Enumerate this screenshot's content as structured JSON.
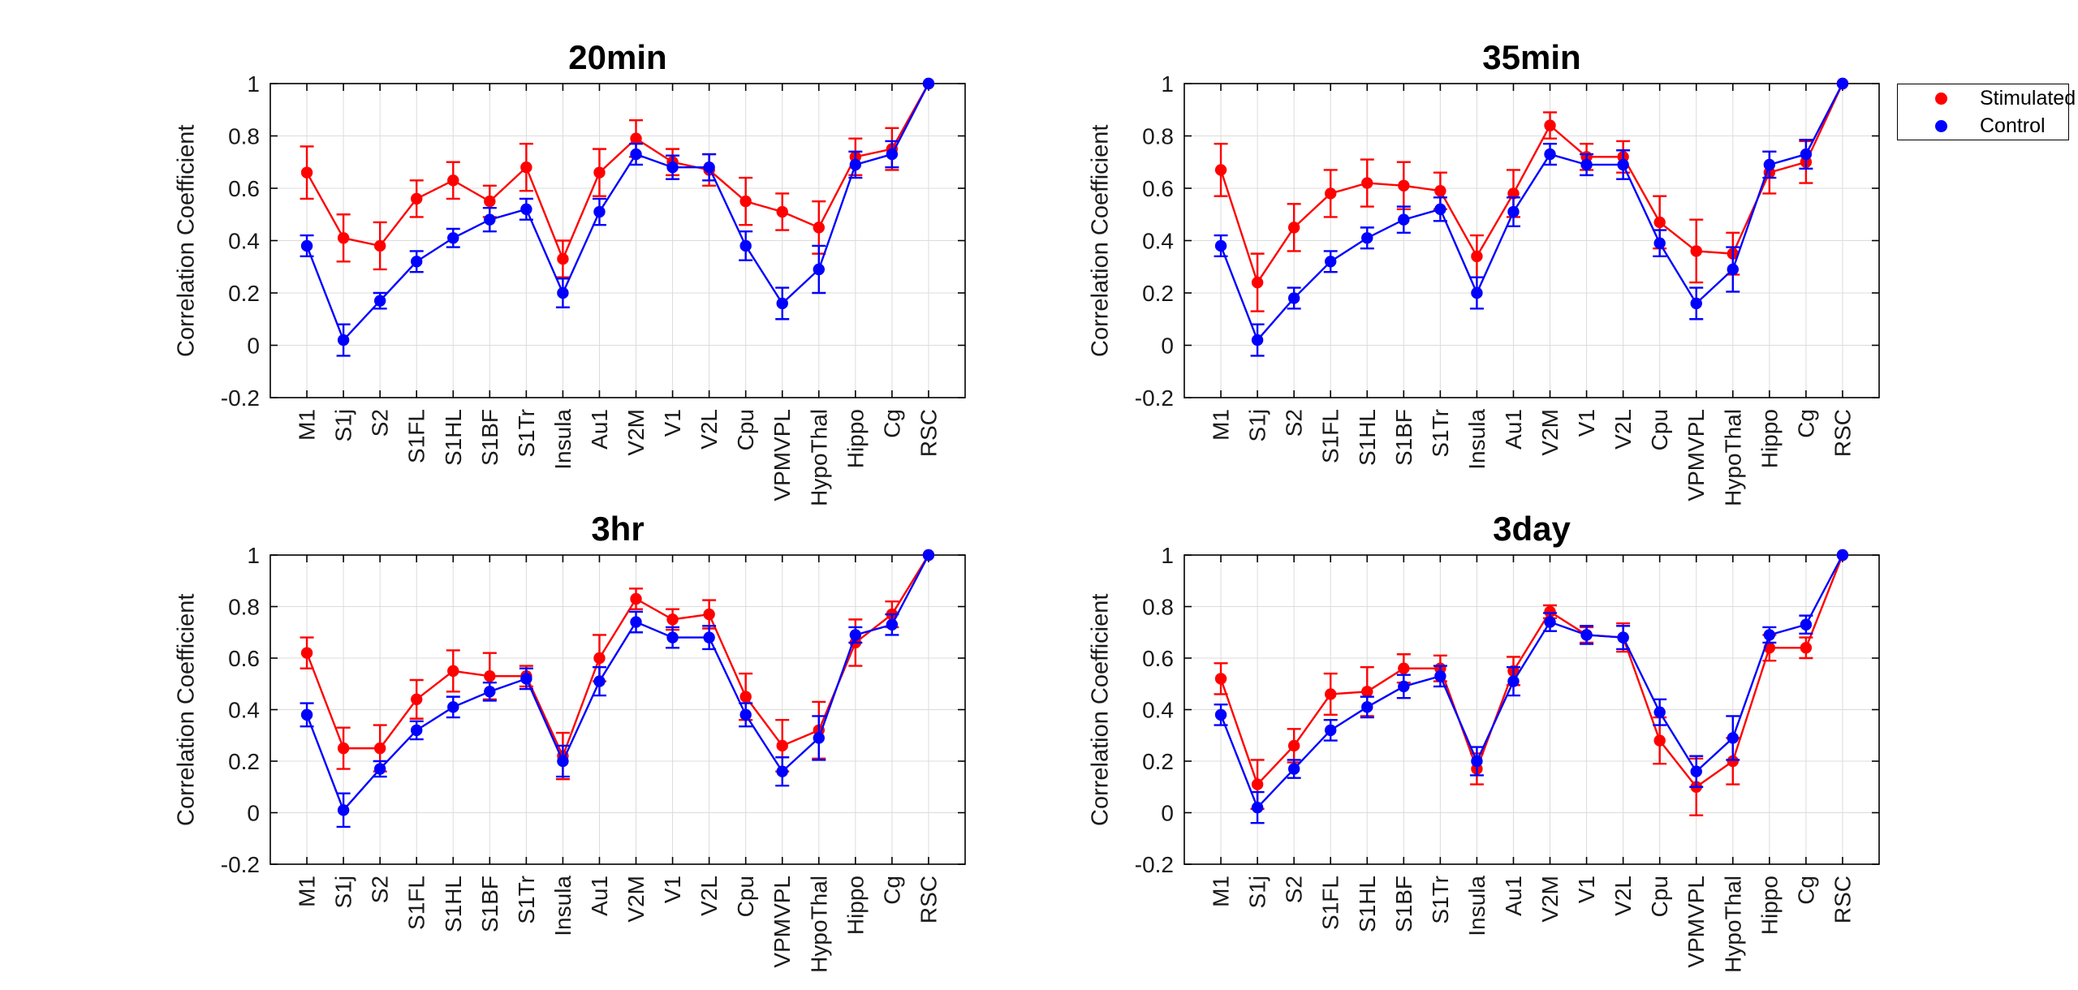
{
  "figure": {
    "background": "#ffffff"
  },
  "legend": {
    "border_color": "#000000",
    "items": [
      {
        "label": "Stimulated",
        "color": "#ff0000"
      },
      {
        "label": "Control",
        "color": "#0000ff"
      }
    ]
  },
  "chart_data": [
    {
      "type": "line",
      "title": "20min",
      "ylabel": "Correlation Coefficient",
      "ylim": [
        -0.2,
        1
      ],
      "ytick_labels": [
        "-0.2",
        "0",
        "0.2",
        "0.4",
        "0.6",
        "0.8",
        "1"
      ],
      "grid": true,
      "legend_position": "outside-top-right",
      "categories": [
        "M1",
        "S1j",
        "S2",
        "S1FL",
        "S1HL",
        "S1BF",
        "S1Tr",
        "Insula",
        "Au1",
        "V2M",
        "V1",
        "V2L",
        "Cpu",
        "VPMVPL",
        "HypoThal",
        "Hippo",
        "Cg",
        "RSC"
      ],
      "series": [
        {
          "name": "Stimulated",
          "color": "#ff0000",
          "values": [
            0.66,
            0.41,
            0.38,
            0.56,
            0.63,
            0.55,
            0.68,
            0.33,
            0.66,
            0.79,
            0.7,
            0.67,
            0.55,
            0.51,
            0.45,
            0.72,
            0.75,
            1.0
          ],
          "errors": [
            0.1,
            0.09,
            0.09,
            0.07,
            0.07,
            0.06,
            0.09,
            0.07,
            0.09,
            0.07,
            0.05,
            0.06,
            0.09,
            0.07,
            0.1,
            0.07,
            0.08,
            0
          ]
        },
        {
          "name": "Control",
          "color": "#0000ff",
          "values": [
            0.38,
            0.02,
            0.17,
            0.32,
            0.41,
            0.48,
            0.52,
            0.2,
            0.51,
            0.73,
            0.68,
            0.68,
            0.38,
            0.16,
            0.29,
            0.69,
            0.73,
            1.0
          ],
          "errors": [
            0.04,
            0.06,
            0.03,
            0.04,
            0.035,
            0.045,
            0.04,
            0.055,
            0.05,
            0.04,
            0.045,
            0.05,
            0.055,
            0.06,
            0.09,
            0.05,
            0.05,
            0
          ]
        }
      ]
    },
    {
      "type": "line",
      "title": "35min",
      "ylabel": "Correlation Coefficient",
      "ylim": [
        -0.2,
        1
      ],
      "ytick_labels": [
        "-0.2",
        "0",
        "0.2",
        "0.4",
        "0.6",
        "0.8",
        "1"
      ],
      "grid": true,
      "categories": [
        "M1",
        "S1j",
        "S2",
        "S1FL",
        "S1HL",
        "S1BF",
        "S1Tr",
        "Insula",
        "Au1",
        "V2M",
        "V1",
        "V2L",
        "Cpu",
        "VPMVPL",
        "HypoThal",
        "Hippo",
        "Cg",
        "RSC"
      ],
      "series": [
        {
          "name": "Stimulated",
          "color": "#ff0000",
          "values": [
            0.67,
            0.24,
            0.45,
            0.58,
            0.62,
            0.61,
            0.59,
            0.34,
            0.58,
            0.84,
            0.72,
            0.72,
            0.47,
            0.36,
            0.35,
            0.66,
            0.7,
            1.0
          ],
          "errors": [
            0.1,
            0.11,
            0.09,
            0.09,
            0.09,
            0.09,
            0.07,
            0.08,
            0.09,
            0.05,
            0.05,
            0.06,
            0.1,
            0.12,
            0.08,
            0.08,
            0.08,
            0
          ]
        },
        {
          "name": "Control",
          "color": "#0000ff",
          "values": [
            0.38,
            0.02,
            0.18,
            0.32,
            0.41,
            0.48,
            0.52,
            0.2,
            0.51,
            0.73,
            0.69,
            0.69,
            0.39,
            0.16,
            0.29,
            0.69,
            0.73,
            1.0
          ],
          "errors": [
            0.04,
            0.06,
            0.04,
            0.04,
            0.04,
            0.05,
            0.045,
            0.06,
            0.055,
            0.04,
            0.04,
            0.055,
            0.05,
            0.06,
            0.085,
            0.05,
            0.055,
            0
          ]
        }
      ]
    },
    {
      "type": "line",
      "title": "3hr",
      "ylabel": "Correlation Coefficient",
      "ylim": [
        -0.2,
        1
      ],
      "ytick_labels": [
        "-0.2",
        "0",
        "0.2",
        "0.4",
        "0.6",
        "0.8",
        "1"
      ],
      "grid": true,
      "categories": [
        "M1",
        "S1j",
        "S2",
        "S1FL",
        "S1HL",
        "S1BF",
        "S1Tr",
        "Insula",
        "Au1",
        "V2M",
        "V1",
        "V2L",
        "Cpu",
        "VPMVPL",
        "HypoThal",
        "Hippo",
        "Cg",
        "RSC"
      ],
      "series": [
        {
          "name": "Stimulated",
          "color": "#ff0000",
          "values": [
            0.62,
            0.25,
            0.25,
            0.44,
            0.55,
            0.53,
            0.53,
            0.22,
            0.6,
            0.83,
            0.75,
            0.77,
            0.45,
            0.26,
            0.32,
            0.66,
            0.77,
            1.0
          ],
          "errors": [
            0.06,
            0.08,
            0.09,
            0.075,
            0.08,
            0.09,
            0.04,
            0.09,
            0.09,
            0.04,
            0.04,
            0.055,
            0.09,
            0.1,
            0.11,
            0.09,
            0.05,
            0
          ]
        },
        {
          "name": "Control",
          "color": "#0000ff",
          "values": [
            0.38,
            0.01,
            0.17,
            0.32,
            0.41,
            0.47,
            0.52,
            0.2,
            0.51,
            0.74,
            0.68,
            0.68,
            0.38,
            0.16,
            0.29,
            0.69,
            0.73,
            1.0
          ],
          "errors": [
            0.045,
            0.065,
            0.03,
            0.035,
            0.04,
            0.035,
            0.04,
            0.06,
            0.055,
            0.04,
            0.04,
            0.045,
            0.045,
            0.055,
            0.085,
            0.03,
            0.04,
            0
          ]
        }
      ]
    },
    {
      "type": "line",
      "title": "3day",
      "ylabel": "Correlation Coefficient",
      "ylim": [
        -0.2,
        1
      ],
      "ytick_labels": [
        "-0.2",
        "0",
        "0.2",
        "0.4",
        "0.6",
        "0.8",
        "1"
      ],
      "grid": true,
      "categories": [
        "M1",
        "S1j",
        "S2",
        "S1FL",
        "S1HL",
        "S1BF",
        "S1Tr",
        "Insula",
        "Au1",
        "V2M",
        "V1",
        "V2L",
        "Cpu",
        "VPMVPL",
        "HypoThal",
        "Hippo",
        "Cg",
        "RSC"
      ],
      "series": [
        {
          "name": "Stimulated",
          "color": "#ff0000",
          "values": [
            0.52,
            0.11,
            0.26,
            0.46,
            0.47,
            0.56,
            0.56,
            0.17,
            0.55,
            0.78,
            0.69,
            0.68,
            0.28,
            0.1,
            0.2,
            0.64,
            0.64,
            1.0
          ],
          "errors": [
            0.06,
            0.095,
            0.065,
            0.08,
            0.095,
            0.055,
            0.05,
            0.06,
            0.055,
            0.025,
            0.03,
            0.055,
            0.09,
            0.11,
            0.09,
            0.05,
            0.04,
            0
          ]
        },
        {
          "name": "Control",
          "color": "#0000ff",
          "values": [
            0.38,
            0.02,
            0.17,
            0.32,
            0.41,
            0.49,
            0.53,
            0.2,
            0.51,
            0.74,
            0.69,
            0.68,
            0.39,
            0.16,
            0.29,
            0.69,
            0.73,
            1.0
          ],
          "errors": [
            0.04,
            0.06,
            0.035,
            0.04,
            0.04,
            0.045,
            0.04,
            0.055,
            0.055,
            0.035,
            0.035,
            0.045,
            0.05,
            0.06,
            0.085,
            0.03,
            0.035,
            0
          ]
        }
      ]
    }
  ]
}
